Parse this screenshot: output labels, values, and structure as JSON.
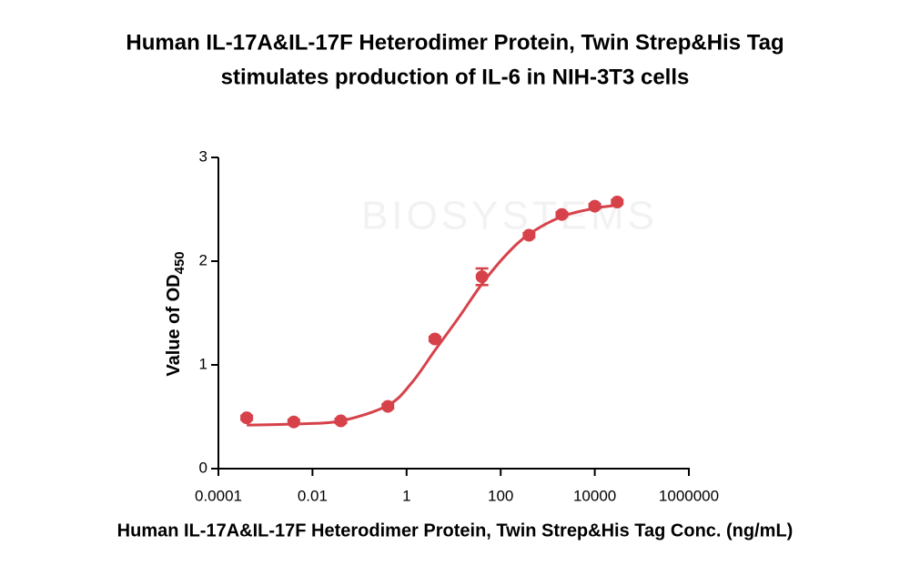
{
  "chart_data": {
    "type": "scatter",
    "title": [
      "Human IL-17A&IL-17F Heterodimer Protein, Twin Strep&His Tag",
      "stimulates production of IL-6 in NIH-3T3 cells"
    ],
    "x_label": "Human IL-17A&IL-17F Heterodimer Protein, Twin Strep&His Tag Conc. (ng/mL)",
    "y_label": "Value of OD",
    "y_label_sub": "450",
    "watermark": "BIOSYSTEMS",
    "x_scale": "log",
    "xlim": [
      0.0001,
      1000000
    ],
    "xticks": [
      0.0001,
      0.01,
      1,
      100,
      10000,
      1000000
    ],
    "ylim": [
      0,
      3
    ],
    "yticks": [
      0,
      1,
      2,
      3
    ],
    "series": [
      {
        "color": "#d7424a",
        "x": [
          0.0004,
          0.004,
          0.04,
          0.4,
          4,
          40,
          400,
          2000,
          10000,
          30000
        ],
        "values": [
          0.49,
          0.45,
          0.46,
          0.6,
          1.25,
          1.85,
          2.25,
          2.45,
          2.53,
          2.57
        ],
        "errors": [
          0.02,
          0.02,
          0.02,
          0.02,
          0.02,
          0.08,
          0.02,
          0.02,
          0.02,
          0.02
        ]
      }
    ],
    "fit_curve": {
      "color": "#d7424a",
      "x": [
        0.0004,
        0.004,
        0.04,
        0.4,
        1.3,
        4,
        13,
        40,
        130,
        400,
        2000,
        10000,
        30000
      ],
      "values": [
        0.42,
        0.43,
        0.46,
        0.61,
        0.83,
        1.14,
        1.46,
        1.78,
        2.06,
        2.26,
        2.43,
        2.51,
        2.54
      ]
    }
  }
}
